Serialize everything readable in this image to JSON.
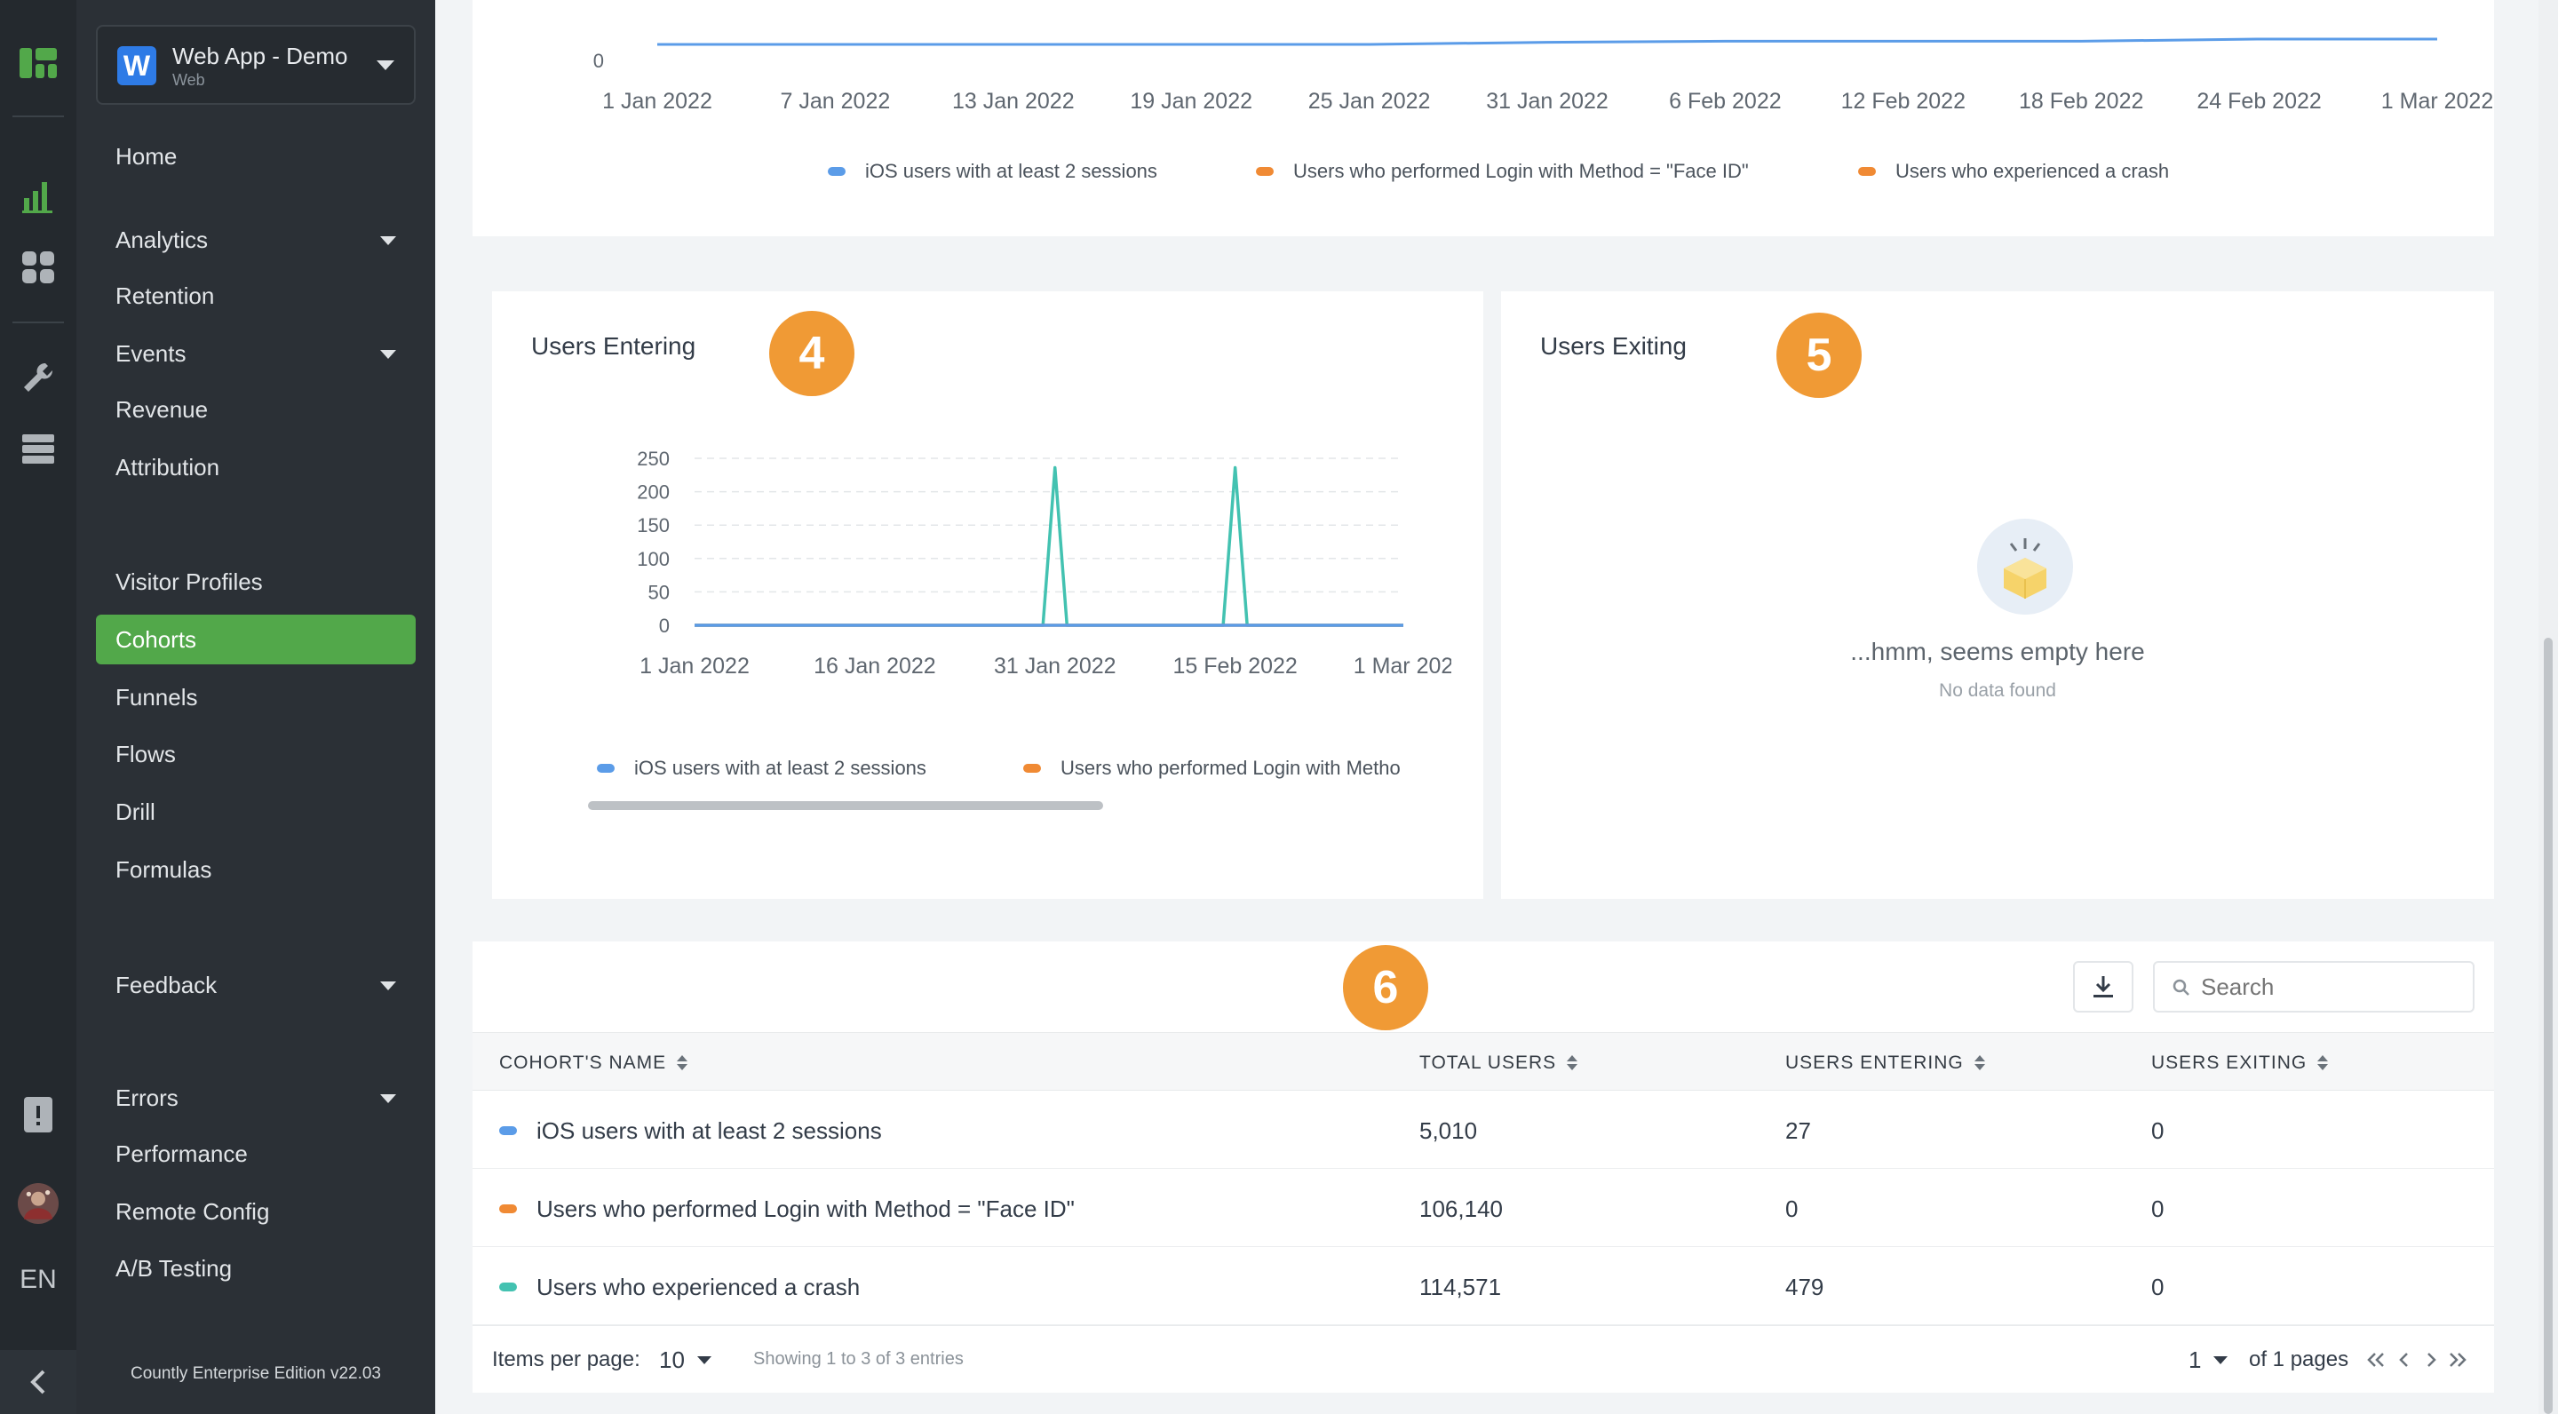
{
  "app": {
    "name": "Web App - Demo",
    "platform": "Web",
    "logo_letter": "W"
  },
  "rail": {
    "language": "EN"
  },
  "nav": {
    "items": [
      {
        "label": "Home"
      },
      {
        "label": "Analytics"
      },
      {
        "label": "Retention"
      },
      {
        "label": "Events"
      },
      {
        "label": "Revenue"
      },
      {
        "label": "Attribution"
      },
      {
        "label": "Visitor Profiles"
      },
      {
        "label": "Cohorts"
      },
      {
        "label": "Funnels"
      },
      {
        "label": "Flows"
      },
      {
        "label": "Drill"
      },
      {
        "label": "Formulas"
      },
      {
        "label": "Feedback"
      },
      {
        "label": "Errors"
      },
      {
        "label": "Performance"
      },
      {
        "label": "Remote Config"
      },
      {
        "label": "A/B Testing"
      }
    ],
    "active": "Cohorts",
    "edition": "Countly Enterprise Edition v22.03"
  },
  "colors": {
    "blue": "#5b9ce8",
    "orange": "#f08a34",
    "teal": "#43c2b1",
    "active_green": "#52a84a",
    "badge": "#f09a35"
  },
  "top_chart": {
    "y_tick": "0",
    "x_ticks": [
      "1 Jan 2022",
      "7 Jan 2022",
      "13 Jan 2022",
      "19 Jan 2022",
      "25 Jan 2022",
      "31 Jan 2022",
      "6 Feb 2022",
      "12 Feb 2022",
      "18 Feb 2022",
      "24 Feb 2022",
      "1 Mar 2022"
    ],
    "legend": [
      "iOS users with at least 2 sessions",
      "Users who performed Login with Method = \"Face ID\"",
      "Users who experienced a crash"
    ]
  },
  "entering": {
    "title": "Users Entering",
    "badge": "4",
    "legend": [
      "iOS users with at least 2 sessions",
      "Users who performed Login with Metho"
    ]
  },
  "exiting": {
    "title": "Users Exiting",
    "badge": "5",
    "empty_title": "...hmm, seems empty here",
    "empty_sub": "No data found"
  },
  "table": {
    "badge": "6",
    "search_placeholder": "Search",
    "headers": [
      "COHORT'S NAME",
      "TOTAL USERS",
      "USERS ENTERING",
      "USERS EXITING"
    ],
    "rows": [
      {
        "name": "iOS users with at least 2 sessions",
        "total": "5,010",
        "entering": "27",
        "exiting": "0",
        "color": "#5b9ce8"
      },
      {
        "name": "Users who performed Login with Method = \"Face ID\"",
        "total": "106,140",
        "entering": "0",
        "exiting": "0",
        "color": "#f08a34"
      },
      {
        "name": "Users who experienced a crash",
        "total": "114,571",
        "entering": "479",
        "exiting": "0",
        "color": "#43c2b1"
      }
    ],
    "items_per_page_label": "Items per page:",
    "items_per_page": "10",
    "showing": "Showing 1 to 3 of 3 entries",
    "page": "1",
    "of_pages": "of 1 pages"
  },
  "chart_data": [
    {
      "type": "line",
      "title": "",
      "x": [
        "1 Jan 2022",
        "7 Jan 2022",
        "13 Jan 2022",
        "19 Jan 2022",
        "25 Jan 2022",
        "31 Jan 2022",
        "6 Feb 2022",
        "12 Feb 2022",
        "18 Feb 2022",
        "24 Feb 2022",
        "1 Mar 2022"
      ],
      "series": [
        {
          "name": "iOS users with at least 2 sessions",
          "color": "#5b9ce8",
          "values": [
            5000,
            5000,
            5000,
            5000,
            5000,
            5004,
            5006,
            5006,
            5006,
            5010,
            5010
          ]
        }
      ],
      "legend": "bottom"
    },
    {
      "type": "line",
      "title": "Users Entering",
      "x_ticks": [
        "1 Jan 2022",
        "16 Jan 2022",
        "31 Jan 2022",
        "15 Feb 2022",
        "1 Mar 202"
      ],
      "y_ticks": [
        0,
        50,
        100,
        150,
        200,
        250
      ],
      "ylim": [
        0,
        250
      ],
      "grid": true,
      "series": [
        {
          "name": "iOS users with at least 2 sessions",
          "color": "#5b9ce8",
          "points": [
            [
              "1 Jan 2022",
              0
            ],
            [
              "1 Mar 2022",
              0
            ]
          ]
        },
        {
          "name": "Users who performed Login with Metho",
          "color": "#f08a34",
          "points": [
            [
              "1 Jan 2022",
              0
            ],
            [
              "1 Mar 2022",
              0
            ]
          ]
        },
        {
          "name": "",
          "color": "#43c2b1",
          "points": [
            [
              "1 Jan 2022",
              0
            ],
            [
              "30 Jan 2022",
              0
            ],
            [
              "31 Jan 2022",
              236
            ],
            [
              "1 Feb 2022",
              0
            ],
            [
              "14 Feb 2022",
              0
            ],
            [
              "15 Feb 2022",
              236
            ],
            [
              "16 Feb 2022",
              0
            ],
            [
              "1 Mar 2022",
              0
            ]
          ]
        }
      ],
      "legend": "bottom"
    }
  ]
}
